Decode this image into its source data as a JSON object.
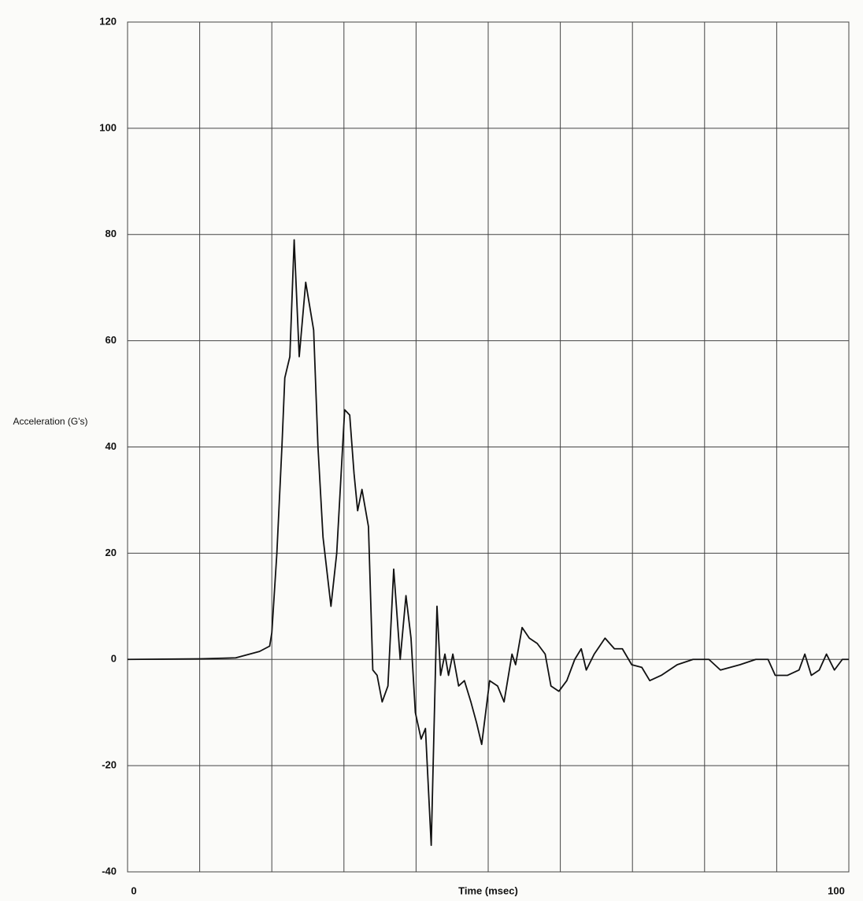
{
  "chart_data": {
    "type": "line",
    "y_label": "Acceleration (G's)",
    "x_label": "Time (msec)",
    "x": [
      0,
      10,
      15,
      18.3,
      19.7,
      20,
      20.7,
      21.4,
      21.8,
      22.5,
      23.1,
      23.8,
      24.7,
      25.8,
      26.4,
      27.1,
      28.2,
      29,
      30.1,
      30.8,
      31.4,
      31.9,
      32.5,
      33.4,
      34,
      34.6,
      35.3,
      36.1,
      36.9,
      37.8,
      38.6,
      39.3,
      39.9,
      40.7,
      41.3,
      42.1,
      42.9,
      43.4,
      44,
      44.5,
      45.1,
      45.9,
      46.7,
      47.6,
      48.4,
      49.1,
      50.2,
      51.3,
      52.2,
      53.3,
      53.8,
      54.7,
      55.7,
      56.8,
      57.9,
      58.7,
      59.8,
      60.9,
      62,
      62.9,
      63.6,
      64.7,
      66.2,
      67.5,
      68.6,
      69.9,
      71.3,
      72.4,
      74,
      76.2,
      78.4,
      80.6,
      82.2,
      84.9,
      87.1,
      88.8,
      89.8,
      91.5,
      93.1,
      93.9,
      94.8,
      95.9,
      96.9,
      98,
      99.1,
      100
    ],
    "series": [
      {
        "color": "#111111",
        "values": [
          0,
          0.1,
          0.3,
          1.5,
          2.5,
          5,
          20,
          40,
          53,
          57,
          79,
          57,
          71,
          62,
          40,
          23,
          10,
          20,
          47,
          46,
          35,
          28,
          32,
          25,
          -2,
          -3,
          -8,
          -5,
          17,
          0,
          12,
          4,
          -10,
          -15,
          -13,
          -35,
          10,
          -3,
          1,
          -3,
          1,
          -5,
          -4,
          -8,
          -12,
          -16,
          -4,
          -5,
          -8,
          1,
          -1,
          6,
          4,
          3,
          1,
          -5,
          -6,
          -4,
          0,
          2,
          -2,
          1,
          4,
          2,
          2,
          -1,
          -1.5,
          -4,
          -3,
          -1,
          0,
          0,
          -2,
          -1,
          0,
          0,
          -3,
          -3,
          -2,
          1,
          -3,
          -2,
          1,
          -2,
          0,
          0
        ]
      }
    ],
    "xlim": [
      0,
      100
    ],
    "ylim": [
      -40,
      120
    ],
    "xticks": [
      0,
      {
        "value": 10,
        "label": null
      },
      {
        "value": 20,
        "label": null
      },
      {
        "value": 30,
        "label": null
      },
      {
        "value": 40,
        "label": null
      },
      {
        "value": 50,
        "label": null
      },
      {
        "value": 60,
        "label": null
      },
      {
        "value": 70,
        "label": null
      },
      {
        "value": 80,
        "label": null
      },
      {
        "value": 90,
        "label": null
      },
      100
    ],
    "yticks": [
      -40,
      -20,
      0,
      20,
      40,
      60,
      80,
      100,
      120
    ],
    "grid": true
  }
}
